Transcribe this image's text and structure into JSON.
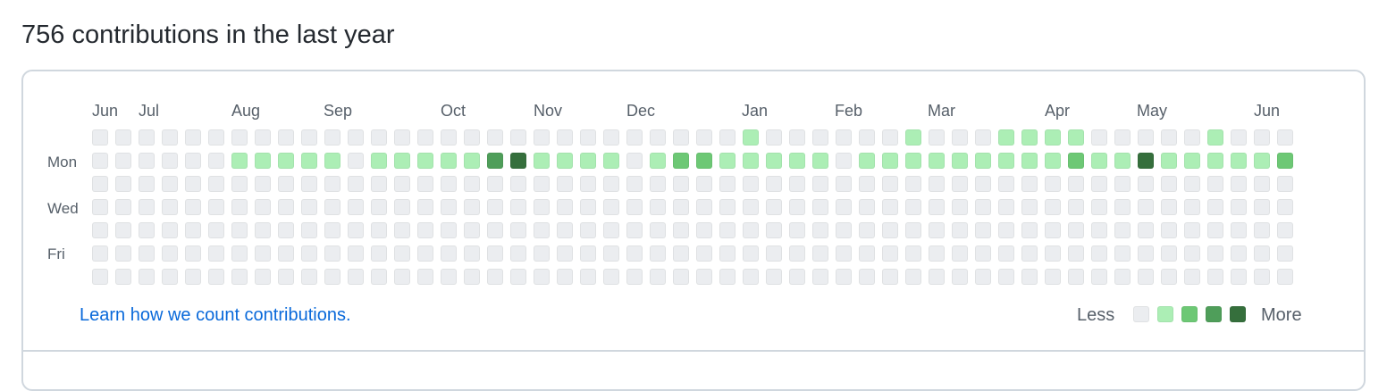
{
  "heading": "756 contributions in the last year",
  "months": [
    "Jun",
    "Jul",
    "Aug",
    "Sep",
    "Oct",
    "Nov",
    "Dec",
    "Jan",
    "Feb",
    "Mar",
    "Apr",
    "May",
    "Jun"
  ],
  "days": [
    "Mon",
    "Wed",
    "Fri"
  ],
  "learn_link": "Learn how we count contributions.",
  "legend": {
    "less": "Less",
    "more": "More",
    "levels": [
      0,
      1,
      2,
      3,
      4
    ]
  },
  "colors": {
    "level0": "#ebedf0",
    "level1": "#aceeb5",
    "level2": "#6dc875",
    "level3": "#4f9e5a",
    "level4": "#356f3c",
    "link": "#0969da"
  },
  "contribution_levels": [
    "0000000000000000000000000000100000010001111000001000",
    "0000001111101111134111101221111101111111112114111112",
    "0000000000000000000000000000000000000000000000000000",
    "0000000000000000000000000000000000000000000000000000",
    "0000000000000000000000000000000000000000000000000000",
    "0000000000000000000000000000000000000000000000000000",
    "0000000000000000000000000000000000000000000000000000"
  ]
}
